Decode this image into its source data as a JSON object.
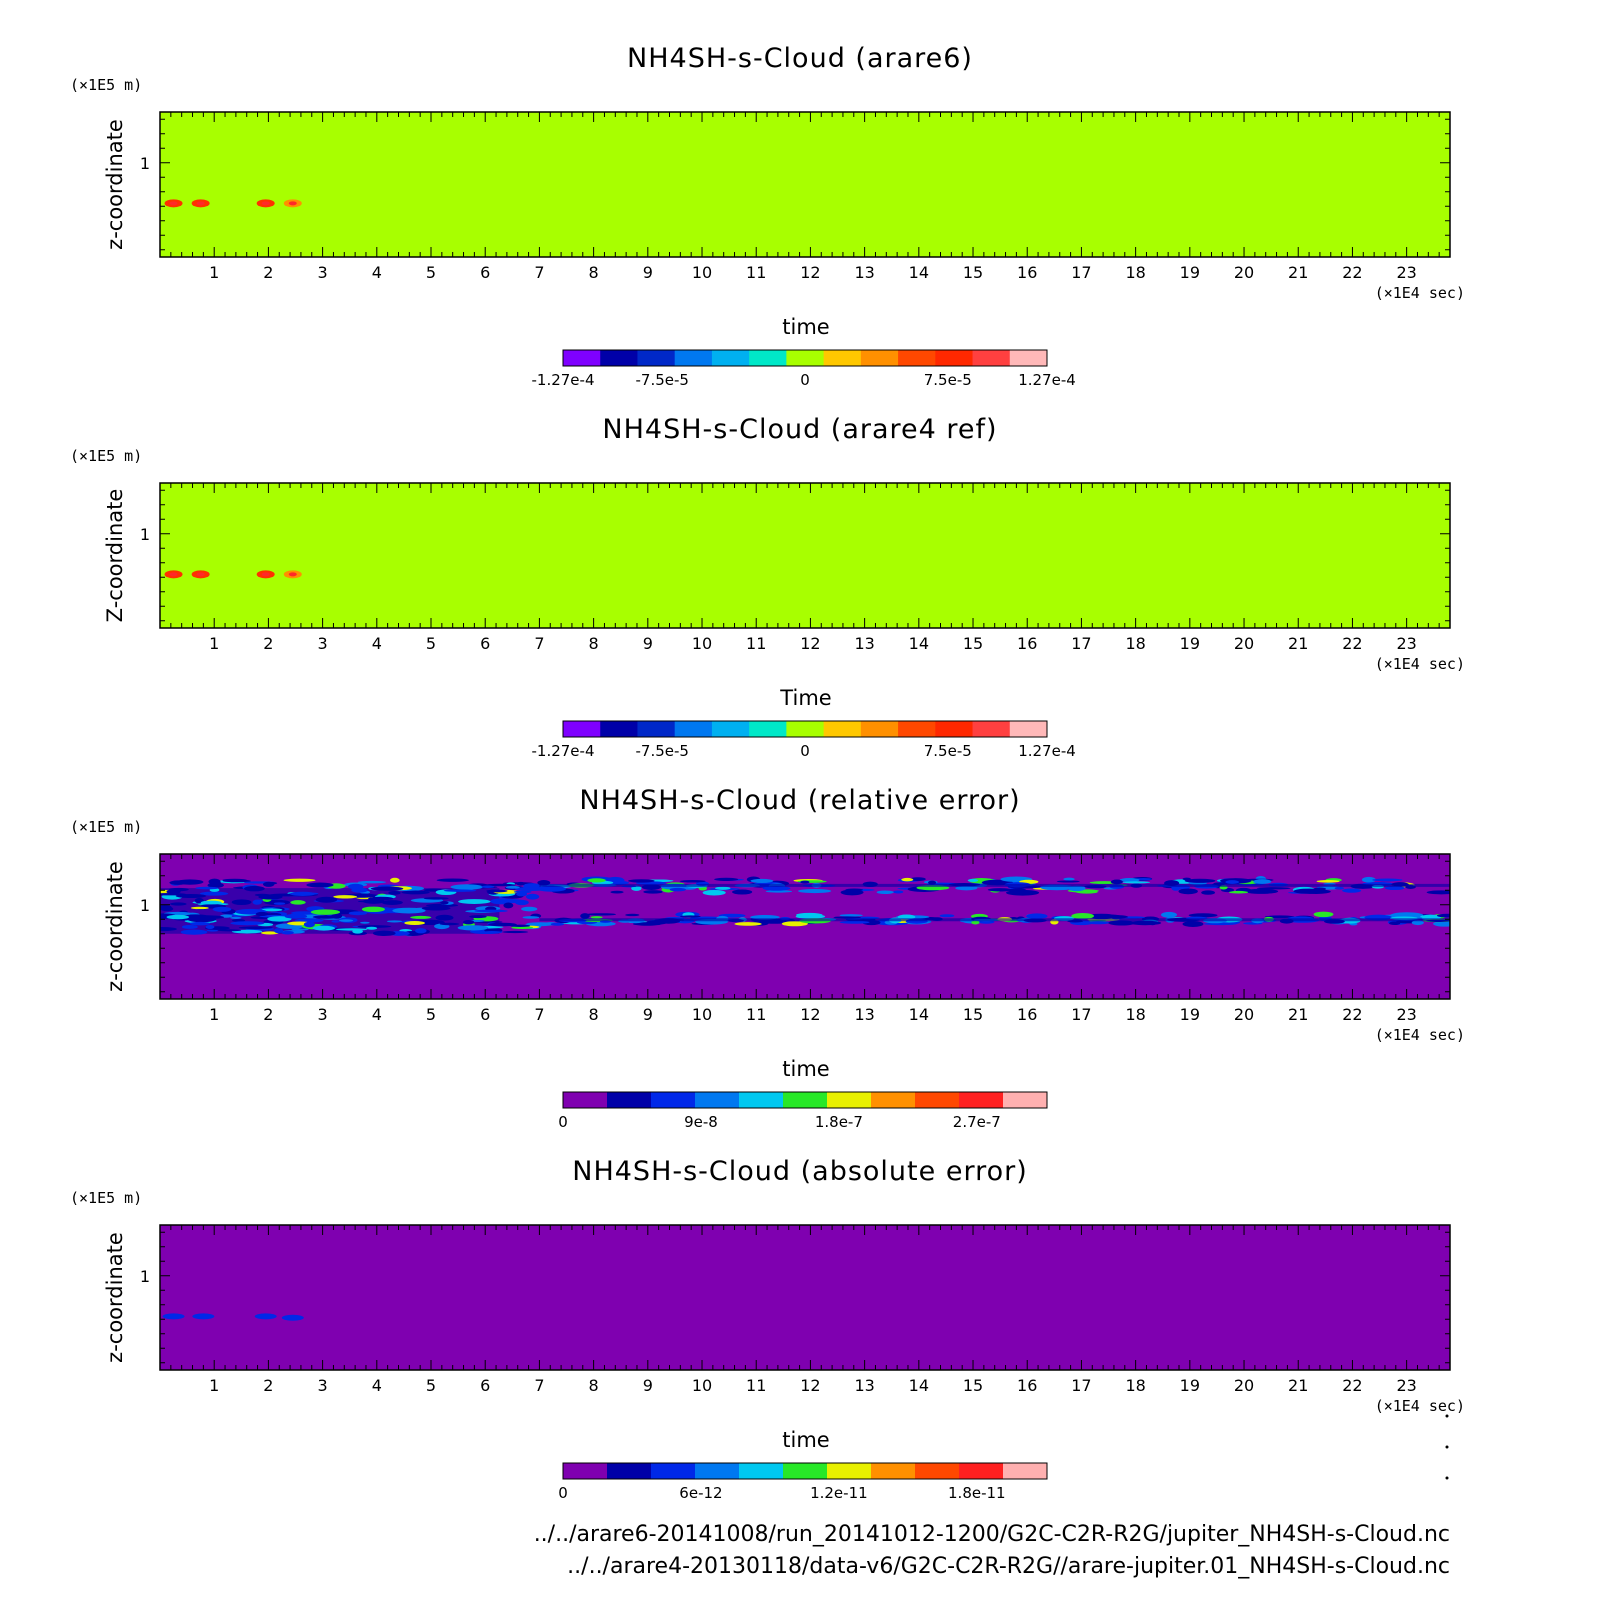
{
  "chart_data": [
    {
      "type": "heatmap",
      "title": "NH4SH-s-Cloud (arare6)",
      "xlabel": "time",
      "ylabel": "z-coordinate",
      "x_unit": "(×1E4 sec)",
      "y_unit": "(×1E5 m)",
      "x_ticks": [
        "1",
        "2",
        "3",
        "4",
        "5",
        "6",
        "7",
        "8",
        "9",
        "10",
        "11",
        "12",
        "13",
        "14",
        "15",
        "16",
        "17",
        "18",
        "19",
        "20",
        "21",
        "22",
        "23"
      ],
      "x_range": [
        0,
        23.8
      ],
      "y_ticks": [
        "1"
      ],
      "y_range": [
        0.35,
        1.35
      ],
      "background_color": "#a8ff00",
      "features": [
        {
          "x": 0.25,
          "y": 0.72,
          "color": "#ff3000"
        },
        {
          "x": 0.75,
          "y": 0.72,
          "color": "#ff3000"
        },
        {
          "x": 1.95,
          "y": 0.72,
          "color": "#ff3000"
        },
        {
          "x": 2.45,
          "y": 0.72,
          "color": "#ff9000"
        }
      ],
      "colorbar": {
        "colors": [
          "#7f00ff",
          "#0000a8",
          "#0028c8",
          "#0078f0",
          "#00b0f0",
          "#00e8c8",
          "#a8ff00",
          "#ffc800",
          "#ff9000",
          "#ff4800",
          "#ff2800",
          "#ff4040",
          "#ffb8b8"
        ],
        "labels": [
          {
            "text": "-1.27e-4",
            "pos": 0.0
          },
          {
            "text": "-7.5e-5",
            "pos": 0.205
          },
          {
            "text": "0",
            "pos": 0.5
          },
          {
            "text": "7.5e-5",
            "pos": 0.795
          },
          {
            "text": "1.27e-4",
            "pos": 1.0
          }
        ]
      }
    },
    {
      "type": "heatmap",
      "title": "NH4SH-s-Cloud (arare4 ref)",
      "xlabel": "Time",
      "ylabel": "Z-coordinate",
      "x_unit": "(×1E4 sec)",
      "y_unit": "(×1E5 m)",
      "x_ticks": [
        "1",
        "2",
        "3",
        "4",
        "5",
        "6",
        "7",
        "8",
        "9",
        "10",
        "11",
        "12",
        "13",
        "14",
        "15",
        "16",
        "17",
        "18",
        "19",
        "20",
        "21",
        "22",
        "23"
      ],
      "x_range": [
        0,
        23.8
      ],
      "y_ticks": [
        "1"
      ],
      "y_range": [
        0.35,
        1.35
      ],
      "background_color": "#a8ff00",
      "features": [
        {
          "x": 0.25,
          "y": 0.72,
          "color": "#ff3000"
        },
        {
          "x": 0.75,
          "y": 0.72,
          "color": "#ff3000"
        },
        {
          "x": 1.95,
          "y": 0.72,
          "color": "#ff3000"
        },
        {
          "x": 2.45,
          "y": 0.72,
          "color": "#ff9000"
        }
      ],
      "colorbar": {
        "colors": [
          "#7f00ff",
          "#0000a8",
          "#0028c8",
          "#0078f0",
          "#00b0f0",
          "#00e8c8",
          "#a8ff00",
          "#ffc800",
          "#ff9000",
          "#ff4800",
          "#ff2800",
          "#ff4040",
          "#ffb8b8"
        ],
        "labels": [
          {
            "text": "-1.27e-4",
            "pos": 0.0
          },
          {
            "text": "-7.5e-5",
            "pos": 0.205
          },
          {
            "text": "0",
            "pos": 0.5
          },
          {
            "text": "7.5e-5",
            "pos": 0.795
          },
          {
            "text": "1.27e-4",
            "pos": 1.0
          }
        ]
      }
    },
    {
      "type": "heatmap",
      "title": "NH4SH-s-Cloud (relative error)",
      "xlabel": "time",
      "ylabel": "z-coordinate",
      "x_unit": "(×1E4 sec)",
      "y_unit": "(×1E5 m)",
      "x_ticks": [
        "1",
        "2",
        "3",
        "4",
        "5",
        "6",
        "7",
        "8",
        "9",
        "10",
        "11",
        "12",
        "13",
        "14",
        "15",
        "16",
        "17",
        "18",
        "19",
        "20",
        "21",
        "22",
        "23"
      ],
      "x_range": [
        0,
        23.8
      ],
      "y_ticks": [
        "1"
      ],
      "y_range": [
        0.35,
        1.35
      ],
      "background_color": "#7f00b0",
      "noise_band": {
        "y_min": 0.8,
        "y_max": 1.17,
        "x_dense_end": 7
      },
      "colorbar": {
        "colors": [
          "#7f00b0",
          "#0000a8",
          "#0028e8",
          "#0078f0",
          "#00c8f0",
          "#28e828",
          "#e8f000",
          "#ff9000",
          "#ff4800",
          "#ff2020",
          "#ffb0b0"
        ],
        "labels": [
          {
            "text": "0",
            "pos": 0.0
          },
          {
            "text": "9e-8",
            "pos": 0.285
          },
          {
            "text": "1.8e-7",
            "pos": 0.57
          },
          {
            "text": "2.7e-7",
            "pos": 0.855
          }
        ]
      }
    },
    {
      "type": "heatmap",
      "title": "NH4SH-s-Cloud (absolute error)",
      "xlabel": "time",
      "ylabel": "z-coordinate",
      "x_unit": "(×1E4 sec)",
      "y_unit": "(×1E5 m)",
      "x_ticks": [
        "1",
        "2",
        "3",
        "4",
        "5",
        "6",
        "7",
        "8",
        "9",
        "10",
        "11",
        "12",
        "13",
        "14",
        "15",
        "16",
        "17",
        "18",
        "19",
        "20",
        "21",
        "22",
        "23"
      ],
      "x_range": [
        0,
        23.8
      ],
      "y_ticks": [
        "1"
      ],
      "y_range": [
        0.35,
        1.35
      ],
      "background_color": "#7f00b0",
      "features": [
        {
          "x": 0.25,
          "y": 0.72,
          "color": "#0028e8"
        },
        {
          "x": 0.8,
          "y": 0.72,
          "color": "#0028e8"
        },
        {
          "x": 1.95,
          "y": 0.72,
          "color": "#0028e8"
        },
        {
          "x": 2.45,
          "y": 0.71,
          "color": "#0028e8"
        }
      ],
      "colorbar": {
        "colors": [
          "#7f00b0",
          "#0000a8",
          "#0028e8",
          "#0078f0",
          "#00c8f0",
          "#28e828",
          "#e8f000",
          "#ff9000",
          "#ff4800",
          "#ff2020",
          "#ffb0b0"
        ],
        "labels": [
          {
            "text": "0",
            "pos": 0.0
          },
          {
            "text": "6e-12",
            "pos": 0.285
          },
          {
            "text": "1.2e-11",
            "pos": 0.57
          },
          {
            "text": "1.8e-11",
            "pos": 0.855
          }
        ]
      }
    }
  ],
  "footer": {
    "line1": "../../arare6-20141008/run_20141012-1200/G2C-C2R-R2G/jupiter_NH4SH-s-Cloud.nc",
    "line2": "../../arare4-20130118/data-v6/G2C-C2R-R2G//arare-jupiter.01_NH4SH-s-Cloud.nc"
  }
}
